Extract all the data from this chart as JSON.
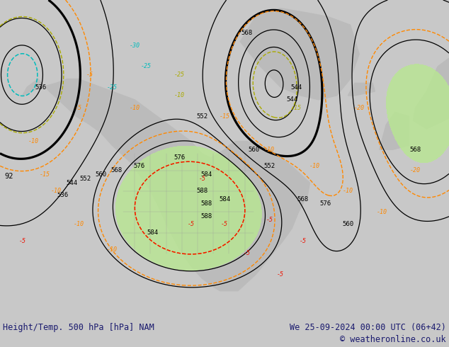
{
  "title_left": "Height/Temp. 500 hPa [hPa] NAM",
  "title_right": "We 25-09-2024 00:00 UTC (06+42)",
  "copyright": "© weatheronline.co.uk",
  "title_color": "#1a1a6e",
  "bg_color": "#c8c8c8",
  "green_fill_color": "#b8e890",
  "height_color": "#000000",
  "temp_orange_color": "#ff8800",
  "temp_red_color": "#ee1100",
  "temp_cyan_color": "#00bbbb",
  "temp_yellow_color": "#aaaa00",
  "land_color": "#bbbbbb",
  "border_color": "#999999",
  "bar_bg": "#dcdcdc",
  "fig_width": 6.34,
  "fig_height": 4.9,
  "dpi": 100
}
